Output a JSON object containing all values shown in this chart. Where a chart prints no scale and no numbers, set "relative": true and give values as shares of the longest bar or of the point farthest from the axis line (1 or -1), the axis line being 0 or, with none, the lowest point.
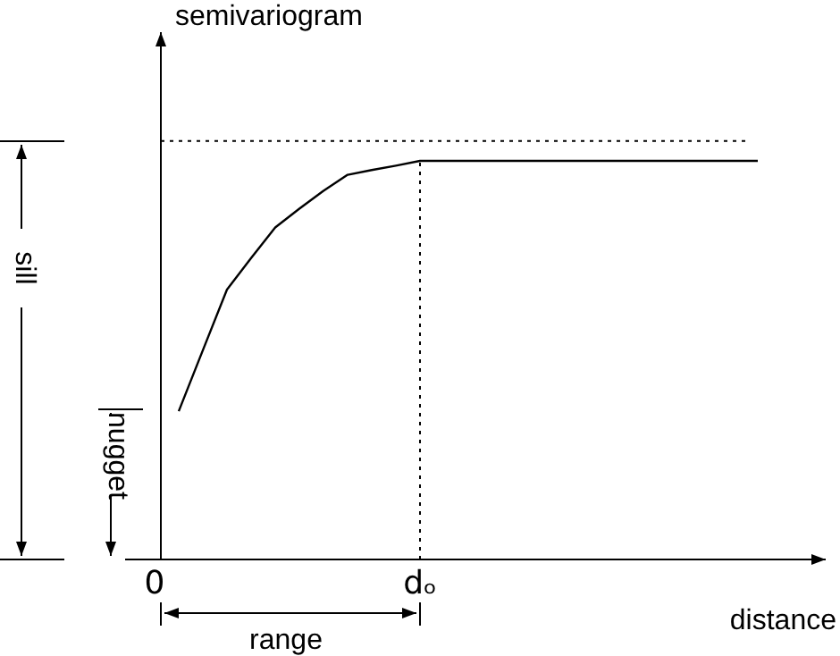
{
  "chart_data": {
    "type": "line",
    "relative": true,
    "xlabel": "distance",
    "ylabel": "semivariogram",
    "categories": [
      "0",
      null,
      null,
      null,
      null,
      null,
      null,
      null,
      null,
      null,
      null,
      "dₒ",
      null,
      null,
      null,
      null,
      null,
      null,
      null,
      null,
      null,
      null,
      null,
      null,
      null,
      null
    ],
    "values": [
      null,
      0.372,
      0.525,
      0.677,
      0.756,
      0.833,
      0.88,
      0.925,
      0.965,
      0.977,
      0.988,
      1,
      1,
      1,
      1,
      1,
      1,
      1,
      1,
      1,
      1,
      1,
      1,
      1,
      1,
      1
    ],
    "color": "#000000",
    "line_style": "solid",
    "marker": "none",
    "ref_lines": [
      {
        "axis": "y",
        "value": 1.05,
        "line_style": "dotted"
      },
      {
        "axis": "x",
        "value": "dₒ",
        "line_style": "dotted"
      }
    ],
    "annotations": [
      "sill",
      "nugget",
      "range"
    ]
  }
}
